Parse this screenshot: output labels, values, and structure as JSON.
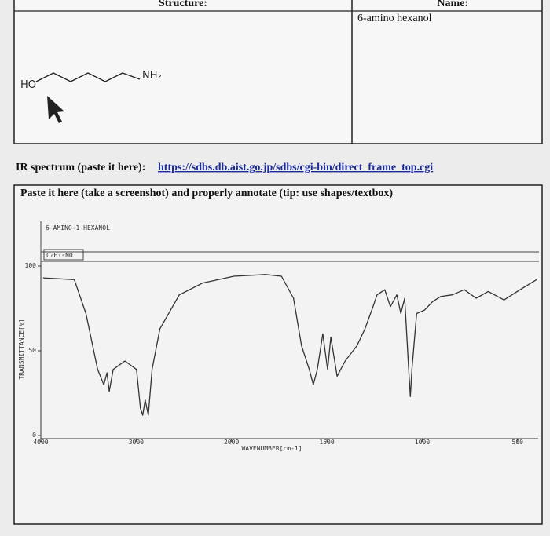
{
  "table": {
    "headers": [
      "Structure:",
      "Name:"
    ],
    "name": "6-amino hexanol",
    "structure_labels": [
      "HO",
      "NH₂"
    ]
  },
  "ir_prompt": {
    "label": "IR spectrum (paste it here):",
    "link": "https://sdbs.db.aist.go.jp/sdbs/cgi-bin/direct_frame_top.cgi"
  },
  "paste_box": {
    "instruction": "Paste it here (take a screenshot) and properly annotate (tip: use shapes/textbox)"
  },
  "chart_data": {
    "type": "line",
    "title": "6-AMINO-1-HEXANOL",
    "subtitle": "C₆H₁₅NO",
    "x_label": "WAVENUMBER[cm-1]",
    "y_label": "TRANSMITTANCE[%]",
    "color": "#333333",
    "x": [
      3976,
      3649,
      3527,
      3404,
      3339,
      3306,
      3282,
      3241,
      3118,
      2996,
      2955,
      2931,
      2906,
      2873,
      2833,
      2751,
      2547,
      2302,
      1988,
      1821,
      1738,
      1675,
      1633,
      1592,
      1571,
      1550,
      1521,
      1496,
      1479,
      1446,
      1404,
      1342,
      1300,
      1258,
      1237,
      1196,
      1167,
      1133,
      1112,
      1092,
      1071,
      1062,
      1054,
      1029,
      988,
      946,
      904,
      842,
      779,
      717,
      654,
      571,
      487,
      400
    ],
    "values": [
      93,
      92,
      72,
      39,
      30,
      37,
      26,
      39,
      44,
      39,
      16,
      12,
      21,
      12,
      39,
      63,
      83,
      90,
      94,
      95,
      94,
      81,
      53,
      39,
      30,
      39,
      60,
      39,
      58,
      35,
      44,
      53,
      63,
      76,
      83,
      86,
      76,
      83,
      72,
      81,
      39,
      23,
      39,
      72,
      74,
      79,
      82,
      83,
      86,
      81,
      85,
      80,
      86,
      92
    ],
    "xlim": [
      4000,
      400
    ],
    "ylim": [
      0,
      100
    ],
    "xticks": [
      4000,
      3000,
      2000,
      1500,
      1000,
      500
    ],
    "yticks": [
      100,
      50,
      0
    ]
  }
}
